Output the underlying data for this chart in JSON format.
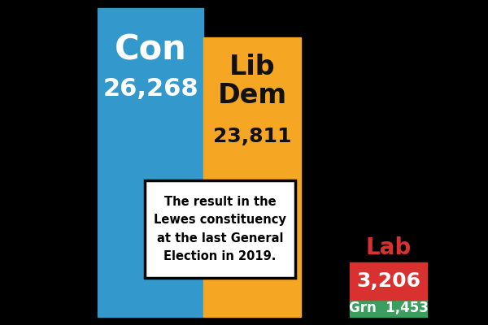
{
  "background_color": "#000000",
  "parties": [
    "Con",
    "Lib Dem",
    "Lab",
    "Grn"
  ],
  "values": [
    26268,
    23811,
    3206,
    1453
  ],
  "colors": [
    "#3399cc",
    "#f5a623",
    "#d93030",
    "#3a9e5f"
  ],
  "labels_display": [
    "26,268",
    "23,811",
    "3,206",
    "1,453"
  ],
  "max_value": 26268,
  "annotation_text": "The result in the\nLewes constituency\nat the last General\nElection in 2019.",
  "fig_width": 6.0,
  "fig_height": 4.0,
  "con_color": "#3399cc",
  "libdem_color": "#f5a623",
  "lab_color": "#d93030",
  "grn_color": "#3a9e5f"
}
